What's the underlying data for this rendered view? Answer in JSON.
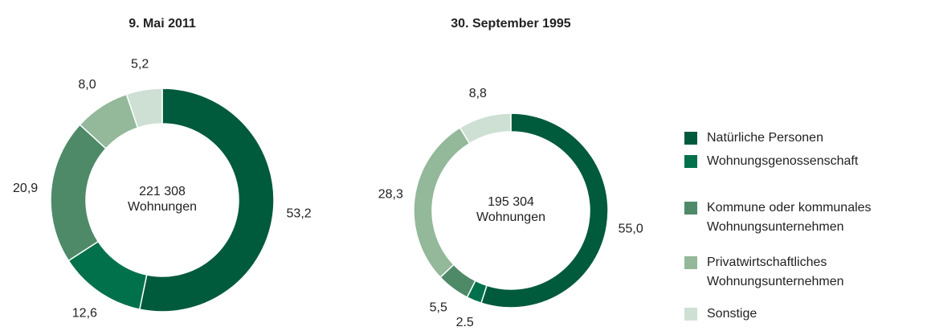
{
  "chart_data": [
    {
      "type": "donut",
      "title": "9. Mai 2011",
      "center_text": "221 308\nWohnungen",
      "values": [
        53.2,
        12.6,
        20.9,
        8.0,
        5.2
      ],
      "value_labels": [
        "53,2",
        "12,6",
        "20,9",
        "8,0",
        "5,2"
      ]
    },
    {
      "type": "donut",
      "title": "30. September 1995",
      "center_text": "195 304\nWohnungen",
      "values": [
        55.0,
        2.5,
        5.5,
        28.3,
        8.8
      ],
      "value_labels": [
        "55,0",
        "2.5",
        "5,5",
        "28,3",
        "8,8"
      ]
    }
  ],
  "legend": {
    "labels": [
      "Natürliche  Personen",
      "Wohnungsgenossenschaft",
      "Kommune oder kommunales\n Wohnungsunternehmen",
      "Privatwirtschaftliches\n Wohnungsunternehmen",
      "Sonstige"
    ],
    "colors": [
      "#005a3c",
      "#00714a",
      "#4e8a68",
      "#93b89a",
      "#cde0d3"
    ]
  }
}
